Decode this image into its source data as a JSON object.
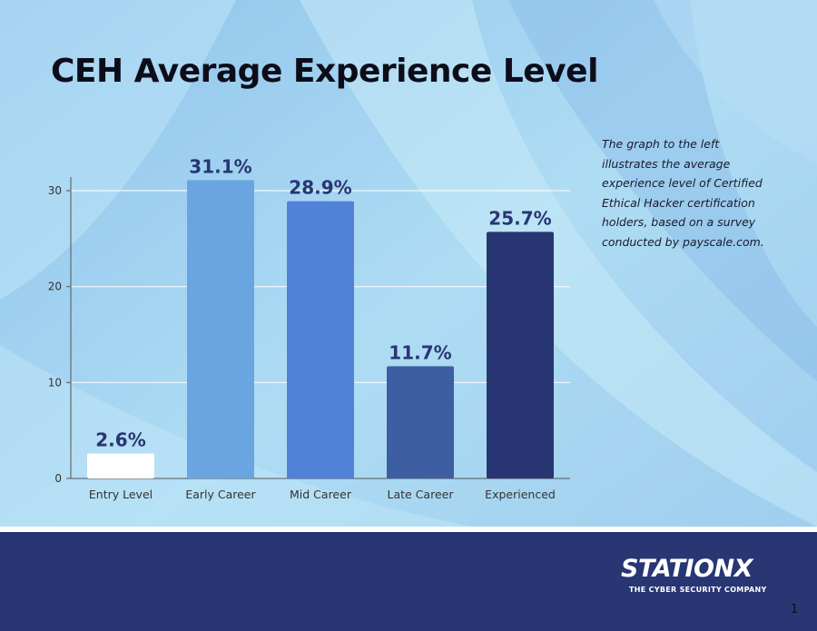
{
  "slide": {
    "title": "CEH Average Experience Level",
    "description": "The graph to the left illustrates the average experience level of Certified Ethical Hacker certification holders, based on a survey conducted by payscale.com.",
    "page_number": "1"
  },
  "logo": {
    "wordmark": "STATIONX",
    "tagline": "THE CYBER SECURITY COMPANY"
  },
  "colors": {
    "footer": "#283673",
    "background": "#a8d8f0"
  },
  "chart_data": {
    "type": "bar",
    "categories": [
      "Entry Level",
      "Early Career",
      "Mid Career",
      "Late Career",
      "Experienced"
    ],
    "values": [
      2.6,
      31.1,
      28.9,
      11.7,
      25.7
    ],
    "data_labels": [
      "2.6%",
      "31.1%",
      "28.9%",
      "11.7%",
      "25.7%"
    ],
    "bar_colors": [
      "#ffffff",
      "#6aa5e2",
      "#5182d7",
      "#3d5ea2",
      "#283673"
    ],
    "yticks": [
      0,
      10,
      20,
      30
    ],
    "ylim": [
      0,
      30
    ],
    "grid": true,
    "title": "",
    "xlabel": "",
    "ylabel": ""
  }
}
